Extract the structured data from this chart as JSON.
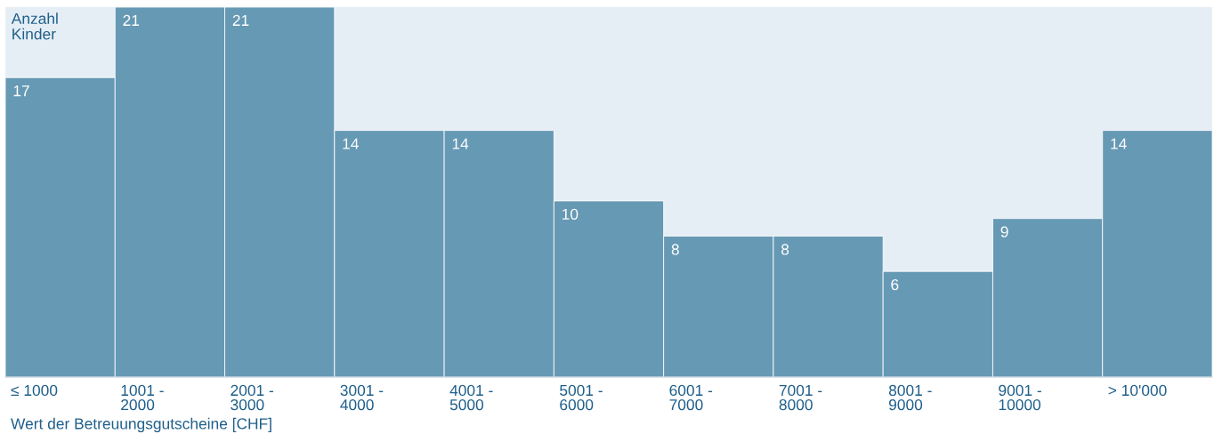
{
  "chart_data": {
    "type": "bar",
    "categories": [
      "≤ 1000",
      "1001 - 2000",
      "2001 - 3000",
      "3001 - 4000",
      "4001 - 5000",
      "5001 - 6000",
      "6001 - 7000",
      "7001 - 8000",
      "8001 - 9000",
      "9001 - 10000",
      "> 10'000"
    ],
    "values": [
      17,
      21,
      21,
      14,
      14,
      10,
      8,
      8,
      6,
      9,
      14
    ],
    "color": "#6699b4",
    "ylabel": "Anzahl Kinder",
    "xlabel": "Wert der Betreuungsgutscheine [CHF]",
    "ylim": [
      0,
      21
    ],
    "tick_labels": "x",
    "data_labels": true,
    "grid": false,
    "legend": false
  }
}
